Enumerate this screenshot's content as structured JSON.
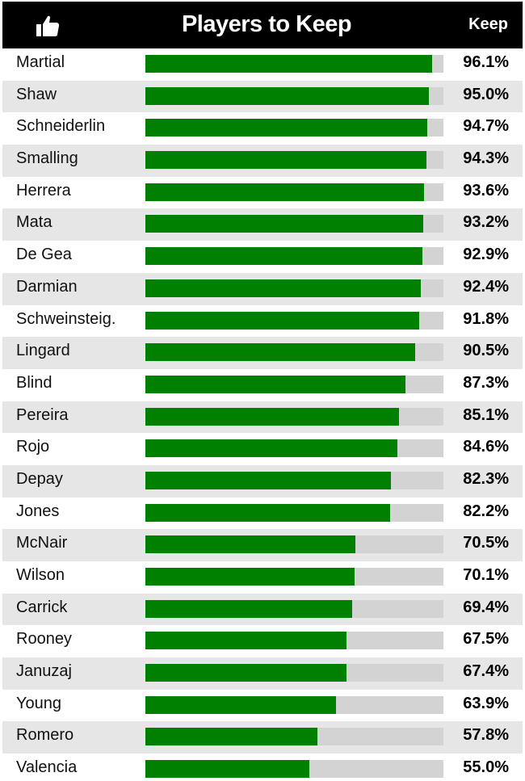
{
  "header": {
    "title": "Players to Keep",
    "column_label": "Keep",
    "icon": "thumbs-up-icon"
  },
  "colors": {
    "bar": "#008000",
    "track": "#d3d3d3",
    "header_bg": "#000000",
    "alt_row": "#e6e6e6"
  },
  "chart_data": {
    "type": "bar",
    "orientation": "horizontal",
    "title": "Players to Keep",
    "value_label": "Keep",
    "unit": "%",
    "xlim": [
      0,
      100
    ],
    "categories": [
      "Martial",
      "Shaw",
      "Schneiderlin",
      "Smalling",
      "Herrera",
      "Mata",
      "De Gea",
      "Darmian",
      "Schweinsteig.",
      "Lingard",
      "Blind",
      "Pereira",
      "Rojo",
      "Depay",
      "Jones",
      "McNair",
      "Wilson",
      "Carrick",
      "Rooney",
      "Januzaj",
      "Young",
      "Romero",
      "Valencia"
    ],
    "values": [
      96.1,
      95.0,
      94.7,
      94.3,
      93.6,
      93.2,
      92.9,
      92.4,
      91.8,
      90.5,
      87.3,
      85.1,
      84.6,
      82.3,
      82.2,
      70.5,
      70.1,
      69.4,
      67.5,
      67.4,
      63.9,
      57.8,
      55.0
    ],
    "labels": [
      "96.1%",
      "95.0%",
      "94.7%",
      "94.3%",
      "93.6%",
      "93.2%",
      "92.9%",
      "92.4%",
      "91.8%",
      "90.5%",
      "87.3%",
      "85.1%",
      "84.6%",
      "82.3%",
      "82.2%",
      "70.5%",
      "70.1%",
      "69.4%",
      "67.5%",
      "67.4%",
      "63.9%",
      "57.8%",
      "55.0%"
    ]
  }
}
